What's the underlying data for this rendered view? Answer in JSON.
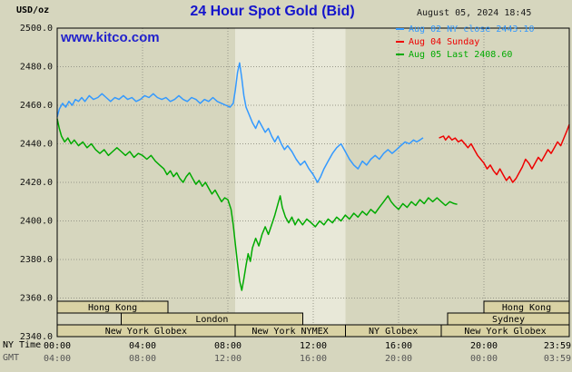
{
  "header": {
    "units_label": "USD/oz",
    "title": "24 Hour Spot Gold (Bid)",
    "datetime": "August 05, 2024 18:45",
    "watermark": "www.kitco.com"
  },
  "legend": [
    {
      "label": "Aug 02 NY close 2443.10",
      "color": "#3399FF"
    },
    {
      "label": "Aug 04 Sunday",
      "color": "#EE0000"
    },
    {
      "label": "Aug 05 Last 2408.60",
      "color": "#00AA00"
    }
  ],
  "axes": {
    "ny_time_label": "NY Time",
    "gmt_label": "GMT",
    "y_ticks": [
      "2500.0",
      "2480.0",
      "2460.0",
      "2440.0",
      "2420.0",
      "2400.0",
      "2380.0",
      "2360.0",
      "2340.0"
    ],
    "x_ticks_ny": [
      "00:00",
      "04:00",
      "08:00",
      "12:00",
      "16:00",
      "20:00",
      "23:59"
    ],
    "x_ticks_gmt": [
      "04:00",
      "08:00",
      "12:00",
      "16:00",
      "20:00",
      "00:00",
      "03:59"
    ]
  },
  "chart_data": {
    "type": "line",
    "title": "24 Hour Spot Gold (Bid)",
    "ylabel": "USD/oz",
    "ylim": [
      2340,
      2500
    ],
    "ytick_step": 20,
    "x_hours_range": [
      0,
      24
    ],
    "xtick_hours": [
      0,
      4,
      8,
      12,
      16,
      20,
      24
    ],
    "nymex_band_hours": [
      8.33,
      13.5
    ],
    "colors": {
      "grid": "#98988A",
      "band": "#E8E8D8",
      "session_box": "#D9D2A4",
      "border": "#000000"
    },
    "series": [
      {
        "id": "aug02",
        "name": "Aug 02 NY close",
        "ny_close": 2443.1,
        "color": "#3399FF",
        "points": [
          [
            0.0,
            2454
          ],
          [
            0.1,
            2458
          ],
          [
            0.25,
            2461
          ],
          [
            0.4,
            2459
          ],
          [
            0.55,
            2462
          ],
          [
            0.7,
            2460
          ],
          [
            0.85,
            2463
          ],
          [
            1.0,
            2462
          ],
          [
            1.15,
            2464
          ],
          [
            1.3,
            2462
          ],
          [
            1.5,
            2465
          ],
          [
            1.7,
            2463
          ],
          [
            1.9,
            2464
          ],
          [
            2.1,
            2466
          ],
          [
            2.3,
            2464
          ],
          [
            2.5,
            2462
          ],
          [
            2.7,
            2464
          ],
          [
            2.9,
            2463
          ],
          [
            3.1,
            2465
          ],
          [
            3.3,
            2463
          ],
          [
            3.5,
            2464
          ],
          [
            3.7,
            2462
          ],
          [
            3.9,
            2463
          ],
          [
            4.1,
            2465
          ],
          [
            4.3,
            2464
          ],
          [
            4.5,
            2466
          ],
          [
            4.7,
            2464
          ],
          [
            4.9,
            2463
          ],
          [
            5.1,
            2464
          ],
          [
            5.3,
            2462
          ],
          [
            5.5,
            2463
          ],
          [
            5.7,
            2465
          ],
          [
            5.9,
            2463
          ],
          [
            6.1,
            2462
          ],
          [
            6.3,
            2464
          ],
          [
            6.5,
            2463
          ],
          [
            6.7,
            2461
          ],
          [
            6.9,
            2463
          ],
          [
            7.1,
            2462
          ],
          [
            7.3,
            2464
          ],
          [
            7.5,
            2462
          ],
          [
            7.7,
            2461
          ],
          [
            7.9,
            2460
          ],
          [
            8.1,
            2459
          ],
          [
            8.25,
            2461
          ],
          [
            8.35,
            2468
          ],
          [
            8.45,
            2477
          ],
          [
            8.55,
            2482
          ],
          [
            8.65,
            2474
          ],
          [
            8.75,
            2465
          ],
          [
            8.85,
            2459
          ],
          [
            9.0,
            2455
          ],
          [
            9.15,
            2451
          ],
          [
            9.3,
            2448
          ],
          [
            9.45,
            2452
          ],
          [
            9.6,
            2449
          ],
          [
            9.75,
            2446
          ],
          [
            9.9,
            2448
          ],
          [
            10.05,
            2444
          ],
          [
            10.2,
            2441
          ],
          [
            10.35,
            2444
          ],
          [
            10.5,
            2440
          ],
          [
            10.65,
            2437
          ],
          [
            10.8,
            2439
          ],
          [
            11.0,
            2436
          ],
          [
            11.2,
            2432
          ],
          [
            11.4,
            2429
          ],
          [
            11.6,
            2431
          ],
          [
            11.8,
            2427
          ],
          [
            12.0,
            2424
          ],
          [
            12.2,
            2420
          ],
          [
            12.35,
            2423
          ],
          [
            12.5,
            2427
          ],
          [
            12.7,
            2431
          ],
          [
            12.9,
            2435
          ],
          [
            13.1,
            2438
          ],
          [
            13.3,
            2440
          ],
          [
            13.5,
            2436
          ],
          [
            13.7,
            2432
          ],
          [
            13.9,
            2429
          ],
          [
            14.1,
            2427
          ],
          [
            14.3,
            2431
          ],
          [
            14.5,
            2429
          ],
          [
            14.7,
            2432
          ],
          [
            14.9,
            2434
          ],
          [
            15.1,
            2432
          ],
          [
            15.3,
            2435
          ],
          [
            15.5,
            2437
          ],
          [
            15.7,
            2435
          ],
          [
            15.9,
            2437
          ],
          [
            16.1,
            2439
          ],
          [
            16.3,
            2441
          ],
          [
            16.5,
            2440
          ],
          [
            16.7,
            2442
          ],
          [
            16.85,
            2441
          ],
          [
            17.0,
            2442
          ],
          [
            17.15,
            2443.1
          ]
        ]
      },
      {
        "id": "aug04",
        "name": "Aug 04 Sunday",
        "color": "#EE0000",
        "points": [
          [
            17.9,
            2443
          ],
          [
            18.1,
            2444
          ],
          [
            18.2,
            2442
          ],
          [
            18.35,
            2444
          ],
          [
            18.5,
            2442
          ],
          [
            18.65,
            2443
          ],
          [
            18.8,
            2441
          ],
          [
            18.95,
            2442
          ],
          [
            19.1,
            2440
          ],
          [
            19.25,
            2438
          ],
          [
            19.4,
            2440
          ],
          [
            19.55,
            2437
          ],
          [
            19.7,
            2434
          ],
          [
            19.85,
            2432
          ],
          [
            20.0,
            2430
          ],
          [
            20.15,
            2427
          ],
          [
            20.3,
            2429
          ],
          [
            20.45,
            2426
          ],
          [
            20.6,
            2424
          ],
          [
            20.75,
            2427
          ],
          [
            20.9,
            2424
          ],
          [
            21.05,
            2421
          ],
          [
            21.2,
            2423
          ],
          [
            21.35,
            2420
          ],
          [
            21.5,
            2422
          ],
          [
            21.65,
            2425
          ],
          [
            21.8,
            2428
          ],
          [
            21.95,
            2432
          ],
          [
            22.1,
            2430
          ],
          [
            22.25,
            2427
          ],
          [
            22.4,
            2430
          ],
          [
            22.55,
            2433
          ],
          [
            22.7,
            2431
          ],
          [
            22.85,
            2434
          ],
          [
            23.0,
            2437
          ],
          [
            23.15,
            2435
          ],
          [
            23.3,
            2438
          ],
          [
            23.45,
            2441
          ],
          [
            23.6,
            2439
          ],
          [
            23.75,
            2443
          ],
          [
            23.9,
            2447
          ],
          [
            24.0,
            2450
          ]
        ]
      },
      {
        "id": "aug05",
        "name": "Aug 05",
        "last": 2408.6,
        "color": "#00AA00",
        "points": [
          [
            0.0,
            2453
          ],
          [
            0.1,
            2448
          ],
          [
            0.2,
            2444
          ],
          [
            0.35,
            2441
          ],
          [
            0.5,
            2443
          ],
          [
            0.65,
            2440
          ],
          [
            0.8,
            2442
          ],
          [
            1.0,
            2439
          ],
          [
            1.2,
            2441
          ],
          [
            1.4,
            2438
          ],
          [
            1.6,
            2440
          ],
          [
            1.8,
            2437
          ],
          [
            2.0,
            2435
          ],
          [
            2.2,
            2437
          ],
          [
            2.4,
            2434
          ],
          [
            2.6,
            2436
          ],
          [
            2.8,
            2438
          ],
          [
            3.0,
            2436
          ],
          [
            3.2,
            2434
          ],
          [
            3.4,
            2436
          ],
          [
            3.6,
            2433
          ],
          [
            3.8,
            2435
          ],
          [
            4.0,
            2434
          ],
          [
            4.2,
            2432
          ],
          [
            4.4,
            2434
          ],
          [
            4.6,
            2431
          ],
          [
            4.8,
            2429
          ],
          [
            5.0,
            2427
          ],
          [
            5.15,
            2424
          ],
          [
            5.3,
            2426
          ],
          [
            5.45,
            2423
          ],
          [
            5.6,
            2425
          ],
          [
            5.75,
            2422
          ],
          [
            5.9,
            2420
          ],
          [
            6.05,
            2423
          ],
          [
            6.2,
            2425
          ],
          [
            6.35,
            2422
          ],
          [
            6.5,
            2419
          ],
          [
            6.65,
            2421
          ],
          [
            6.8,
            2418
          ],
          [
            6.95,
            2420
          ],
          [
            7.1,
            2417
          ],
          [
            7.25,
            2414
          ],
          [
            7.4,
            2416
          ],
          [
            7.55,
            2413
          ],
          [
            7.7,
            2410
          ],
          [
            7.85,
            2412
          ],
          [
            8.0,
            2411
          ],
          [
            8.15,
            2406
          ],
          [
            8.25,
            2398
          ],
          [
            8.35,
            2388
          ],
          [
            8.45,
            2378
          ],
          [
            8.55,
            2369
          ],
          [
            8.65,
            2364
          ],
          [
            8.75,
            2370
          ],
          [
            8.85,
            2377
          ],
          [
            8.95,
            2383
          ],
          [
            9.05,
            2379
          ],
          [
            9.15,
            2386
          ],
          [
            9.3,
            2391
          ],
          [
            9.45,
            2387
          ],
          [
            9.6,
            2393
          ],
          [
            9.75,
            2397
          ],
          [
            9.9,
            2393
          ],
          [
            10.05,
            2398
          ],
          [
            10.2,
            2403
          ],
          [
            10.35,
            2409
          ],
          [
            10.45,
            2413
          ],
          [
            10.55,
            2407
          ],
          [
            10.7,
            2402
          ],
          [
            10.85,
            2399
          ],
          [
            11.0,
            2402
          ],
          [
            11.15,
            2398
          ],
          [
            11.3,
            2401
          ],
          [
            11.5,
            2398
          ],
          [
            11.7,
            2401
          ],
          [
            11.9,
            2399
          ],
          [
            12.1,
            2397
          ],
          [
            12.3,
            2400
          ],
          [
            12.5,
            2398
          ],
          [
            12.7,
            2401
          ],
          [
            12.9,
            2399
          ],
          [
            13.1,
            2402
          ],
          [
            13.3,
            2400
          ],
          [
            13.5,
            2403
          ],
          [
            13.7,
            2401
          ],
          [
            13.9,
            2404
          ],
          [
            14.1,
            2402
          ],
          [
            14.3,
            2405
          ],
          [
            14.5,
            2403
          ],
          [
            14.7,
            2406
          ],
          [
            14.9,
            2404
          ],
          [
            15.1,
            2407
          ],
          [
            15.3,
            2410
          ],
          [
            15.5,
            2413
          ],
          [
            15.65,
            2410
          ],
          [
            15.8,
            2408
          ],
          [
            16.0,
            2406
          ],
          [
            16.2,
            2409
          ],
          [
            16.4,
            2407
          ],
          [
            16.6,
            2410
          ],
          [
            16.8,
            2408
          ],
          [
            17.0,
            2411
          ],
          [
            17.2,
            2409
          ],
          [
            17.4,
            2412
          ],
          [
            17.6,
            2410
          ],
          [
            17.8,
            2412
          ],
          [
            18.0,
            2410
          ],
          [
            18.2,
            2408
          ],
          [
            18.4,
            2410
          ],
          [
            18.6,
            2409
          ],
          [
            18.75,
            2408.6
          ]
        ]
      }
    ],
    "sessions": [
      {
        "row": 0,
        "label": "Hong Kong",
        "start": 0,
        "end": 5.2
      },
      {
        "row": 0,
        "label": "Hong Kong",
        "start": 20.0,
        "end": 24
      },
      {
        "row": 1,
        "label": "London",
        "start": 3.0,
        "end": 11.5
      },
      {
        "row": 1,
        "label": "Sydney",
        "start": 18.3,
        "end": 24
      },
      {
        "row": 2,
        "label": "New York Globex",
        "start": 0,
        "end": 8.33
      },
      {
        "row": 2,
        "label": "New York NYMEX",
        "start": 8.33,
        "end": 13.5
      },
      {
        "row": 2,
        "label": "NY Globex",
        "start": 13.5,
        "end": 18.0
      },
      {
        "row": 2,
        "label": "New York Globex",
        "start": 18.0,
        "end": 24
      }
    ]
  }
}
